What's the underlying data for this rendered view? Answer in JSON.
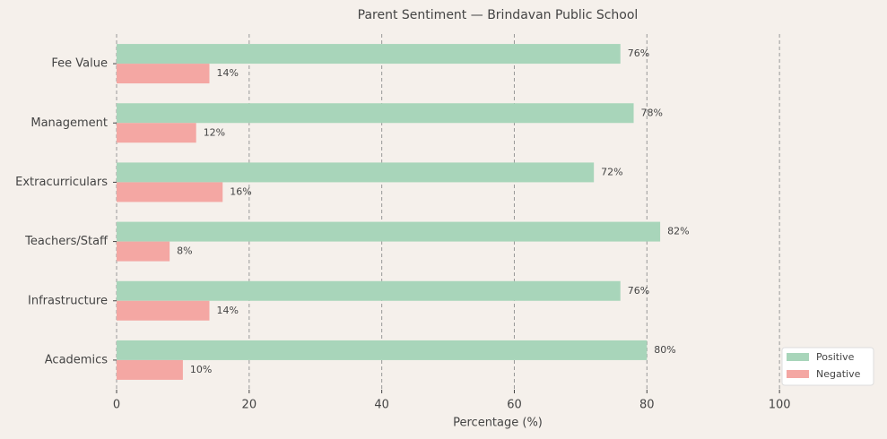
{
  "chart_data": {
    "type": "barh",
    "title": "Parent Sentiment — Brindavan Public School",
    "x_label": "Percentage (%)",
    "categories": [
      "Fee Value",
      "Management",
      "Extracurriculars",
      "Teachers/Staff",
      "Infrastructure",
      "Academics"
    ],
    "series": [
      {
        "name": "Positive",
        "color": "#a8d5ba",
        "values": [
          76,
          78,
          72,
          82,
          76,
          80
        ],
        "value_labels": [
          "76%",
          "78%",
          "72%",
          "82%",
          "76%",
          "80%"
        ]
      },
      {
        "name": "Negative",
        "color": "#f4a7a3",
        "values": [
          14,
          12,
          16,
          8,
          14,
          10
        ],
        "value_labels": [
          "14%",
          "12%",
          "16%",
          "8%",
          "14%",
          "10%"
        ]
      }
    ],
    "xlim": [
      0,
      115
    ],
    "xticks": [
      0,
      20,
      40,
      60,
      80,
      100
    ],
    "grid": true,
    "legend": "lower right"
  }
}
